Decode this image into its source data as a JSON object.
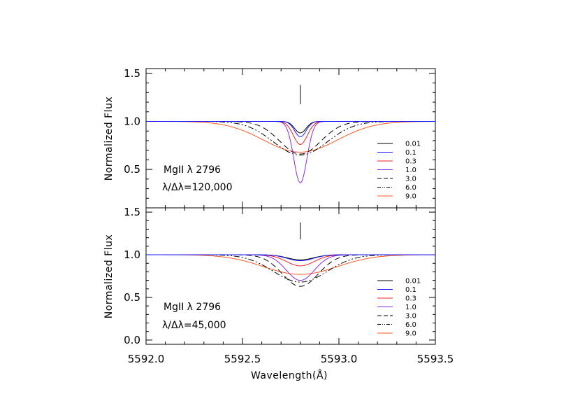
{
  "chart_data": [
    {
      "type": "line",
      "panel": "top",
      "ylabel": "Normalized Flux",
      "xlim": [
        5592.0,
        5593.5
      ],
      "ylim": [
        0.1,
        1.55
      ],
      "yticks": [
        0.5,
        1.0,
        1.5
      ],
      "ytick_labels": [
        "0.5",
        "1.0",
        "1.5"
      ],
      "line_marker": {
        "x": 5592.8,
        "y_range": [
          1.38,
          1.18
        ]
      },
      "annotations": [
        "MgII λ 2796",
        "λ/Δλ=120,000"
      ],
      "legend_position": "right",
      "line_center": 5592.8,
      "series": [
        {
          "name": "0.01",
          "color": "#000000",
          "dash": "solid",
          "min_flux": 0.88,
          "fwhm": 0.07
        },
        {
          "name": "0.1",
          "color": "#1a1aff",
          "dash": "solid",
          "min_flux": 0.84,
          "fwhm": 0.07
        },
        {
          "name": "0.3",
          "color": "#ff2020",
          "dash": "solid",
          "min_flux": 0.76,
          "fwhm": 0.085
        },
        {
          "name": "1.0",
          "color": "#8a2be2",
          "dash": "solid",
          "min_flux": 0.36,
          "fwhm": 0.08
        },
        {
          "name": "3.0",
          "color": "#000000",
          "dash": "8,5",
          "min_flux": 0.66,
          "fwhm": 0.25
        },
        {
          "name": "6.0",
          "color": "#000000",
          "dash": "8,3,2,3,2,3",
          "min_flux": 0.65,
          "fwhm": 0.33
        },
        {
          "name": "9.0",
          "color": "#ff5a1f",
          "dash": "solid",
          "min_flux": 0.68,
          "fwhm": 0.45
        }
      ]
    },
    {
      "type": "line",
      "panel": "bottom",
      "xlabel": "Wavelength(Å)",
      "ylabel": "Normalized Flux",
      "xlim": [
        5592.0,
        5593.5
      ],
      "ylim": [
        -0.05,
        1.55
      ],
      "xticks": [
        5592.0,
        5592.5,
        5593.0,
        5593.5
      ],
      "xtick_labels": [
        "5592.0",
        "5592.5",
        "5593.0",
        "5593.5"
      ],
      "yticks": [
        0.0,
        0.5,
        1.0,
        1.5
      ],
      "ytick_labels": [
        "0.0",
        "0.5",
        "1.0",
        "1.5"
      ],
      "line_marker": {
        "x": 5592.8,
        "y_range": [
          1.38,
          1.18
        ]
      },
      "annotations": [
        "MgII λ 2796",
        "λ/Δλ=45,000"
      ],
      "legend_position": "right",
      "line_center": 5592.8,
      "series": [
        {
          "name": "0.01",
          "color": "#000000",
          "dash": "solid",
          "min_flux": 0.94,
          "fwhm": 0.16
        },
        {
          "name": "0.1",
          "color": "#1a1aff",
          "dash": "solid",
          "min_flux": 0.93,
          "fwhm": 0.16
        },
        {
          "name": "0.3",
          "color": "#ff2020",
          "dash": "solid",
          "min_flux": 0.87,
          "fwhm": 0.17
        },
        {
          "name": "1.0",
          "color": "#8a2be2",
          "dash": "solid",
          "min_flux": 0.7,
          "fwhm": 0.17
        },
        {
          "name": "3.0",
          "color": "#000000",
          "dash": "8,5",
          "min_flux": 0.63,
          "fwhm": 0.22
        },
        {
          "name": "6.0",
          "color": "#000000",
          "dash": "8,3,2,3,2,3",
          "min_flux": 0.68,
          "fwhm": 0.33
        },
        {
          "name": "9.0",
          "color": "#ff5a1f",
          "dash": "solid",
          "min_flux": 0.77,
          "fwhm": 0.45
        }
      ]
    }
  ]
}
